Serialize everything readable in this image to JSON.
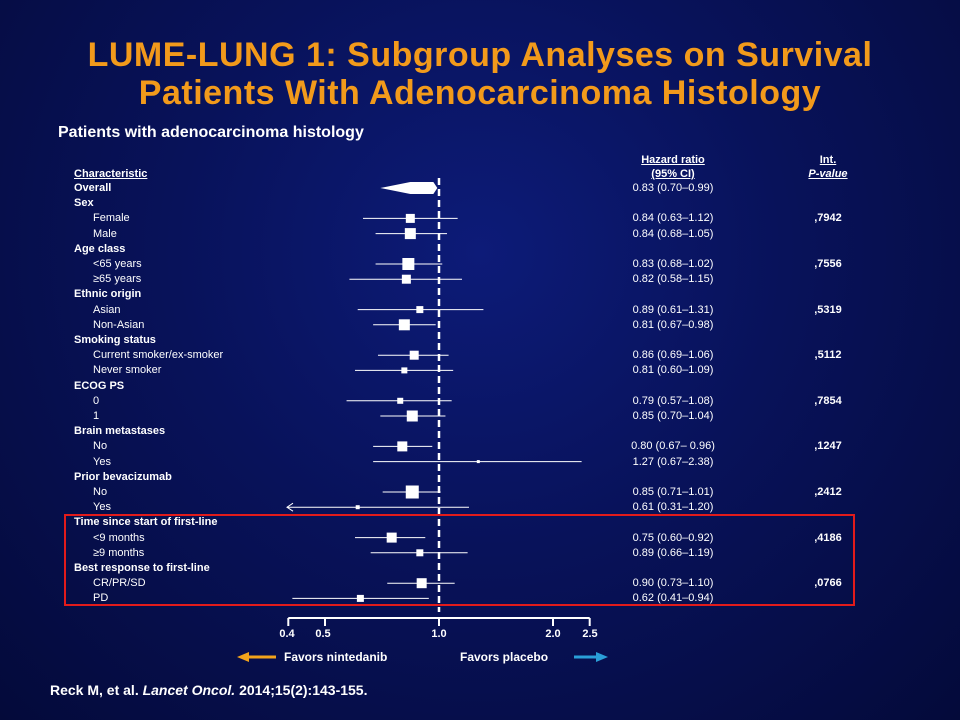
{
  "title": {
    "line1": "LUME-LUNG 1: Subgroup Analyses on Survival",
    "line2": "Patients With Adenocarcinoma Histology"
  },
  "subtitle": "Patients with adenocarcinoma histology",
  "headers": {
    "characteristic": "Characteristic",
    "hr_line1": "Hazard ratio",
    "hr_line2": "(95% CI)",
    "p_line1": "Int.",
    "p_line2": "P-value"
  },
  "axis": {
    "ticks": [
      "0.4",
      "0.5",
      "1.0",
      "2.0",
      "2.5"
    ],
    "left_label": "Favors nintedanib",
    "right_label": "Favors placebo",
    "left_arrow_color": "#f2a31b",
    "right_arrow_color": "#2a9fd8"
  },
  "citation": {
    "authors": "Reck M, et al.",
    "journal": "Lancet Oncol.",
    "ref": "2014;15(2):143-155."
  },
  "highlight_color": "#e21b1b",
  "chart_data": {
    "type": "forest",
    "scale": "log",
    "xlim": [
      0.4,
      2.5
    ],
    "reference_line": 1.0,
    "rows": [
      {
        "label": "Overall",
        "kind": "header",
        "hr": 0.83,
        "lo": 0.7,
        "hi": 0.99,
        "hr_text": "0.83 (0.70–0.99)",
        "p": "",
        "diamond": true
      },
      {
        "label": "Sex",
        "kind": "header"
      },
      {
        "label": "Female",
        "kind": "item",
        "hr": 0.84,
        "lo": 0.63,
        "hi": 1.12,
        "hr_text": "0.84 (0.63–1.12)",
        "p": ",7942",
        "size": 9
      },
      {
        "label": "Male",
        "kind": "item",
        "hr": 0.84,
        "lo": 0.68,
        "hi": 1.05,
        "hr_text": "0.84 (0.68–1.05)",
        "p": "",
        "size": 11
      },
      {
        "label": "Age class",
        "kind": "header"
      },
      {
        "label": "<65 years",
        "kind": "item",
        "hr": 0.83,
        "lo": 0.68,
        "hi": 1.02,
        "hr_text": "0.83 (0.68–1.02)",
        "p": ",7556",
        "size": 12
      },
      {
        "label": "≥65 years",
        "kind": "item",
        "hr": 0.82,
        "lo": 0.58,
        "hi": 1.15,
        "hr_text": "0.82 (0.58–1.15)",
        "p": "",
        "size": 9
      },
      {
        "label": "Ethnic origin",
        "kind": "header"
      },
      {
        "label": "Asian",
        "kind": "item",
        "hr": 0.89,
        "lo": 0.61,
        "hi": 1.31,
        "hr_text": "0.89 (0.61–1.31)",
        "p": ",5319",
        "size": 7
      },
      {
        "label": "Non-Asian",
        "kind": "item",
        "hr": 0.81,
        "lo": 0.67,
        "hi": 0.98,
        "hr_text": "0.81 (0.67–0.98)",
        "p": "",
        "size": 11
      },
      {
        "label": "Smoking status",
        "kind": "header"
      },
      {
        "label": "Current smoker/ex-smoker",
        "kind": "item",
        "hr": 0.86,
        "lo": 0.69,
        "hi": 1.06,
        "hr_text": "0.86 (0.69–1.06)",
        "p": ",5112",
        "size": 9
      },
      {
        "label": "Never smoker",
        "kind": "item",
        "hr": 0.81,
        "lo": 0.6,
        "hi": 1.09,
        "hr_text": "0.81 (0.60–1.09)",
        "p": "",
        "size": 6
      },
      {
        "label": "ECOG  PS",
        "kind": "header"
      },
      {
        "label": "0",
        "kind": "item",
        "hr": 0.79,
        "lo": 0.57,
        "hi": 1.08,
        "hr_text": "0.79 (0.57–1.08)",
        "p": ",7854",
        "size": 6
      },
      {
        "label": "1",
        "kind": "item",
        "hr": 0.85,
        "lo": 0.7,
        "hi": 1.04,
        "hr_text": "0.85 (0.70–1.04)",
        "p": "",
        "size": 11
      },
      {
        "label": "Brain metastases",
        "kind": "header"
      },
      {
        "label": "No",
        "kind": "item",
        "hr": 0.8,
        "lo": 0.67,
        "hi": 0.96,
        "hr_text": "0.80 (0.67– 0.96)",
        "p": ",1247",
        "size": 10
      },
      {
        "label": "Yes",
        "kind": "item",
        "hr": 1.27,
        "lo": 0.67,
        "hi": 2.38,
        "hr_text": "1.27 (0.67–2.38)",
        "p": "",
        "size": 3
      },
      {
        "label": "Prior bevacizumab",
        "kind": "header"
      },
      {
        "label": "No",
        "kind": "item",
        "hr": 0.85,
        "lo": 0.71,
        "hi": 1.01,
        "hr_text": "0.85 (0.71–1.01)",
        "p": ",2412",
        "size": 13
      },
      {
        "label": "Yes",
        "kind": "item",
        "hr": 0.61,
        "lo": 0.31,
        "hi": 1.2,
        "hr_text": "0.61 (0.31–1.20)",
        "p": "",
        "size": 4,
        "arrow_left": true
      },
      {
        "label": "Time since start of first-line",
        "kind": "header"
      },
      {
        "label": "<9 months",
        "kind": "item",
        "hr": 0.75,
        "lo": 0.6,
        "hi": 0.92,
        "hr_text": "0.75 (0.60–0.92)",
        "p": ",4186",
        "size": 10
      },
      {
        "label": "≥9 months",
        "kind": "item",
        "hr": 0.89,
        "lo": 0.66,
        "hi": 1.19,
        "hr_text": "0.89 (0.66–1.19)",
        "p": "",
        "size": 7
      },
      {
        "label": "Best response to first-line",
        "kind": "header"
      },
      {
        "label": "CR/PR/SD",
        "kind": "item",
        "hr": 0.9,
        "lo": 0.73,
        "hi": 1.1,
        "hr_text": "0.90 (0.73–1.10)",
        "p": ",0766",
        "size": 10
      },
      {
        "label": "PD",
        "kind": "item",
        "hr": 0.62,
        "lo": 0.41,
        "hi": 0.94,
        "hr_text": "0.62 (0.41–0.94)",
        "p": "",
        "size": 7
      }
    ]
  }
}
